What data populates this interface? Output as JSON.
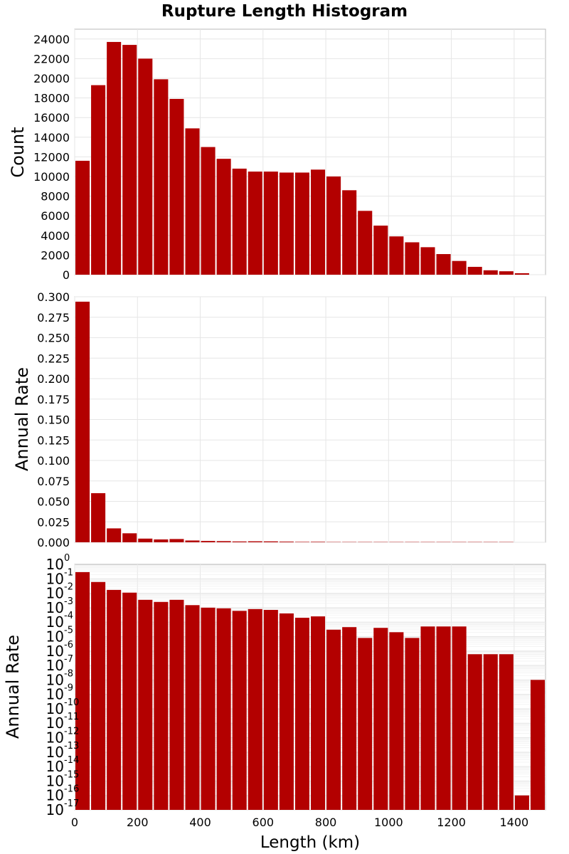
{
  "title": "Rupture Length Histogram",
  "xlabel": "Length (km)",
  "colors": {
    "bar": "#b30000",
    "grid": "#e6e6e6",
    "frame": "#b8b8b8"
  },
  "chart_data": [
    {
      "type": "bar",
      "title": "Rupture Length Histogram",
      "ylabel": "Count",
      "xlim": [
        0,
        1500
      ],
      "ylim": [
        0,
        25000
      ],
      "bin_width": 50,
      "x": [
        0,
        50,
        100,
        150,
        200,
        250,
        300,
        350,
        400,
        450,
        500,
        550,
        600,
        650,
        700,
        750,
        800,
        850,
        900,
        950,
        1000,
        1050,
        1100,
        1150,
        1200,
        1250,
        1300,
        1350,
        1400,
        1450
      ],
      "values": [
        11600,
        19300,
        23700,
        23400,
        22000,
        19900,
        17900,
        14900,
        13000,
        11800,
        10800,
        10500,
        10500,
        10400,
        10400,
        10700,
        10000,
        8600,
        6500,
        5000,
        3900,
        3300,
        2800,
        2100,
        1400,
        800,
        450,
        350,
        150,
        0
      ],
      "yticks": [
        0,
        2000,
        4000,
        6000,
        8000,
        10000,
        12000,
        14000,
        16000,
        18000,
        20000,
        22000,
        24000
      ],
      "xticks": [
        0,
        200,
        400,
        600,
        800,
        1000,
        1200,
        1400
      ]
    },
    {
      "type": "bar",
      "ylabel": "Annual Rate",
      "xlim": [
        0,
        1500
      ],
      "ylim": [
        0,
        0.3
      ],
      "bin_width": 50,
      "x": [
        0,
        50,
        100,
        150,
        200,
        250,
        300,
        350,
        400,
        450,
        500,
        550,
        600,
        650,
        700,
        750,
        800,
        850,
        900,
        950,
        1000,
        1050,
        1100,
        1150,
        1200,
        1250,
        1300,
        1350,
        1400,
        1450
      ],
      "values": [
        0.294,
        0.06,
        0.017,
        0.011,
        0.0045,
        0.0035,
        0.004,
        0.0022,
        0.0016,
        0.0014,
        0.001,
        0.0012,
        0.0011,
        0.0008,
        0.0005,
        0.0006,
        0.0001,
        7e-05,
        4e-05,
        6e-05,
        5e-05,
        3e-05,
        4e-05,
        4e-05,
        4e-05,
        3e-06,
        3e-06,
        3e-06,
        0.0,
        0.0
      ],
      "ytick_labels": [
        "0.000",
        "0.025",
        "0.050",
        "0.075",
        "0.100",
        "0.125",
        "0.150",
        "0.175",
        "0.200",
        "0.225",
        "0.250",
        "0.275",
        "0.300"
      ],
      "xticks": [
        0,
        200,
        400,
        600,
        800,
        1000,
        1200,
        1400
      ]
    },
    {
      "type": "bar",
      "ylabel": "Annual Rate",
      "xlabel": "Length (km)",
      "yscale": "log",
      "xlim": [
        0,
        1500
      ],
      "ylim_exponents": [
        -17,
        0
      ],
      "bin_width": 50,
      "x": [
        0,
        50,
        100,
        150,
        200,
        250,
        300,
        350,
        400,
        450,
        500,
        550,
        600,
        650,
        700,
        750,
        800,
        850,
        900,
        950,
        1000,
        1050,
        1100,
        1150,
        1200,
        1250,
        1300,
        1350,
        1400,
        1450
      ],
      "values": [
        0.29,
        0.06,
        0.017,
        0.011,
        0.0035,
        0.0025,
        0.0035,
        0.0015,
        0.001,
        0.0009,
        0.0006,
        0.0008,
        0.0007,
        0.0004,
        0.0002,
        0.00025,
        3e-05,
        4.5e-05,
        8e-06,
        4e-05,
        2e-05,
        8e-06,
        5e-05,
        5e-05,
        5e-05,
        6e-07,
        6e-07,
        6e-07,
        1e-16,
        1e-08
      ],
      "log_base": "10",
      "ytick_exponents": [
        "0",
        "-1",
        "-2",
        "-3",
        "-4",
        "-5",
        "-6",
        "-7",
        "-8",
        "-9",
        "-10",
        "-11",
        "-12",
        "-13",
        "-14",
        "-15",
        "-16",
        "-17"
      ],
      "xticks": [
        0,
        200,
        400,
        600,
        800,
        1000,
        1200,
        1400
      ],
      "xtick_labels": [
        "0",
        "200",
        "400",
        "600",
        "800",
        "1000",
        "1200",
        "1400"
      ]
    }
  ]
}
